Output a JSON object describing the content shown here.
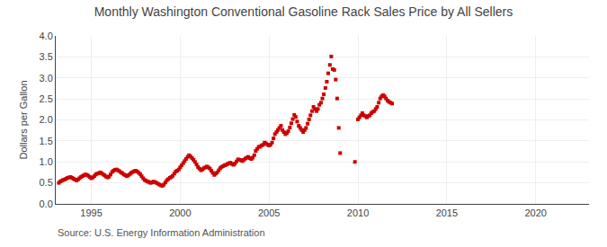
{
  "chart_data": {
    "type": "scatter",
    "title": "Monthly Washington Conventional Gasoline Rack Sales Price by All Sellers",
    "ylabel": "Dollars per Gallon",
    "annotations": [
      "Source: U.S. Energy Information Administration"
    ],
    "color": "#cc0000",
    "marker": "square",
    "grid": true,
    "xlim": [
      1993.0,
      2023.0
    ],
    "ylim": [
      0.0,
      4.0
    ],
    "xticks": [
      1995,
      2000,
      2005,
      2010,
      2015,
      2020
    ],
    "yticks": [
      {
        "value": 0.0,
        "label": "0.0"
      },
      0.5,
      {
        "value": 1.0,
        "label": "1.0"
      },
      1.5,
      {
        "value": 2.0,
        "label": "2.0"
      },
      2.5,
      {
        "value": 3.0,
        "label": "3.0"
      },
      3.5,
      {
        "value": 4.0,
        "label": "4.0"
      }
    ],
    "x": [
      1993.17,
      1993.25,
      1993.33,
      1993.42,
      1993.5,
      1993.58,
      1993.67,
      1993.75,
      1993.83,
      1993.92,
      1994.0,
      1994.08,
      1994.17,
      1994.25,
      1994.33,
      1994.42,
      1994.5,
      1994.58,
      1994.67,
      1994.75,
      1994.83,
      1994.92,
      1995.0,
      1995.08,
      1995.17,
      1995.25,
      1995.33,
      1995.42,
      1995.5,
      1995.58,
      1995.67,
      1995.75,
      1995.83,
      1995.92,
      1996.0,
      1996.08,
      1996.17,
      1996.25,
      1996.33,
      1996.42,
      1996.5,
      1996.58,
      1996.67,
      1996.75,
      1996.83,
      1996.92,
      1997.0,
      1997.08,
      1997.17,
      1997.25,
      1997.33,
      1997.42,
      1997.5,
      1997.58,
      1997.67,
      1997.75,
      1997.83,
      1997.92,
      1998.0,
      1998.08,
      1998.17,
      1998.25,
      1998.33,
      1998.42,
      1998.5,
      1998.58,
      1998.67,
      1998.75,
      1998.83,
      1998.92,
      1999.0,
      1999.08,
      1999.17,
      1999.25,
      1999.33,
      1999.42,
      1999.5,
      1999.58,
      1999.67,
      1999.75,
      1999.83,
      1999.92,
      2000.0,
      2000.08,
      2000.17,
      2000.25,
      2000.33,
      2000.42,
      2000.5,
      2000.58,
      2000.67,
      2000.75,
      2000.83,
      2000.92,
      2001.0,
      2001.08,
      2001.17,
      2001.25,
      2001.33,
      2001.42,
      2001.5,
      2001.58,
      2001.67,
      2001.75,
      2001.83,
      2001.92,
      2002.0,
      2002.08,
      2002.17,
      2002.25,
      2002.33,
      2002.42,
      2002.5,
      2002.58,
      2002.67,
      2002.75,
      2002.83,
      2002.92,
      2003.0,
      2003.08,
      2003.17,
      2003.25,
      2003.33,
      2003.42,
      2003.5,
      2003.58,
      2003.67,
      2003.75,
      2003.83,
      2003.92,
      2004.0,
      2004.08,
      2004.17,
      2004.25,
      2004.33,
      2004.42,
      2004.5,
      2004.58,
      2004.67,
      2004.75,
      2004.83,
      2004.92,
      2005.0,
      2005.08,
      2005.17,
      2005.25,
      2005.33,
      2005.42,
      2005.5,
      2005.58,
      2005.67,
      2005.75,
      2005.83,
      2005.92,
      2006.0,
      2006.08,
      2006.17,
      2006.25,
      2006.33,
      2006.42,
      2006.5,
      2006.58,
      2006.67,
      2006.75,
      2006.83,
      2006.92,
      2007.0,
      2007.08,
      2007.17,
      2007.25,
      2007.33,
      2007.42,
      2007.5,
      2007.58,
      2007.67,
      2007.75,
      2007.83,
      2007.92,
      2008.0,
      2008.08,
      2008.17,
      2008.25,
      2008.33,
      2008.42,
      2008.5,
      2008.58,
      2008.67,
      2008.75,
      2008.83,
      2008.92,
      2009.0,
      2009.83,
      2010.0,
      2010.08,
      2010.17,
      2010.25,
      2010.33,
      2010.42,
      2010.5,
      2010.58,
      2010.67,
      2010.75,
      2010.83,
      2010.92,
      2011.0,
      2011.08,
      2011.17,
      2011.25,
      2011.33,
      2011.42,
      2011.5,
      2011.58,
      2011.67,
      2011.75,
      2011.83,
      2011.92
    ],
    "values": [
      0.5,
      0.53,
      0.55,
      0.57,
      0.58,
      0.6,
      0.62,
      0.63,
      0.64,
      0.62,
      0.6,
      0.58,
      0.56,
      0.58,
      0.61,
      0.64,
      0.66,
      0.68,
      0.7,
      0.69,
      0.67,
      0.64,
      0.61,
      0.63,
      0.66,
      0.7,
      0.72,
      0.73,
      0.75,
      0.73,
      0.7,
      0.68,
      0.65,
      0.63,
      0.65,
      0.7,
      0.76,
      0.79,
      0.81,
      0.82,
      0.8,
      0.78,
      0.75,
      0.73,
      0.7,
      0.68,
      0.66,
      0.68,
      0.71,
      0.74,
      0.76,
      0.78,
      0.79,
      0.77,
      0.74,
      0.71,
      0.66,
      0.61,
      0.57,
      0.55,
      0.53,
      0.52,
      0.5,
      0.51,
      0.53,
      0.52,
      0.5,
      0.48,
      0.46,
      0.44,
      0.43,
      0.46,
      0.51,
      0.56,
      0.59,
      0.62,
      0.64,
      0.67,
      0.72,
      0.77,
      0.79,
      0.82,
      0.87,
      0.92,
      0.97,
      1.02,
      1.07,
      1.12,
      1.16,
      1.13,
      1.09,
      1.05,
      1.0,
      0.94,
      0.88,
      0.84,
      0.8,
      0.82,
      0.85,
      0.87,
      0.89,
      0.87,
      0.84,
      0.79,
      0.74,
      0.69,
      0.72,
      0.75,
      0.8,
      0.85,
      0.88,
      0.9,
      0.92,
      0.93,
      0.95,
      0.97,
      0.98,
      0.95,
      0.93,
      0.96,
      1.01,
      1.06,
      1.05,
      1.04,
      1.02,
      1.05,
      1.08,
      1.1,
      1.12,
      1.09,
      1.07,
      1.1,
      1.16,
      1.26,
      1.31,
      1.36,
      1.36,
      1.39,
      1.41,
      1.46,
      1.44,
      1.41,
      1.39,
      1.41,
      1.46,
      1.56,
      1.66,
      1.71,
      1.76,
      1.81,
      1.86,
      1.76,
      1.71,
      1.66,
      1.69,
      1.73,
      1.82,
      1.92,
      2.02,
      2.12,
      2.07,
      1.96,
      1.86,
      1.81,
      1.76,
      1.71,
      1.76,
      1.81,
      1.91,
      2.01,
      2.11,
      2.21,
      2.31,
      2.26,
      2.21,
      2.26,
      2.36,
      2.41,
      2.51,
      2.61,
      2.76,
      2.91,
      3.11,
      3.31,
      3.51,
      3.21,
      3.19,
      2.96,
      2.51,
      1.81,
      1.21,
      1.0,
      2.01,
      2.06,
      2.11,
      2.16,
      2.11,
      2.09,
      2.06,
      2.09,
      2.11,
      2.16,
      2.19,
      2.21,
      2.26,
      2.31,
      2.41,
      2.51,
      2.56,
      2.59,
      2.56,
      2.51,
      2.46,
      2.43,
      2.41,
      2.39
    ]
  }
}
